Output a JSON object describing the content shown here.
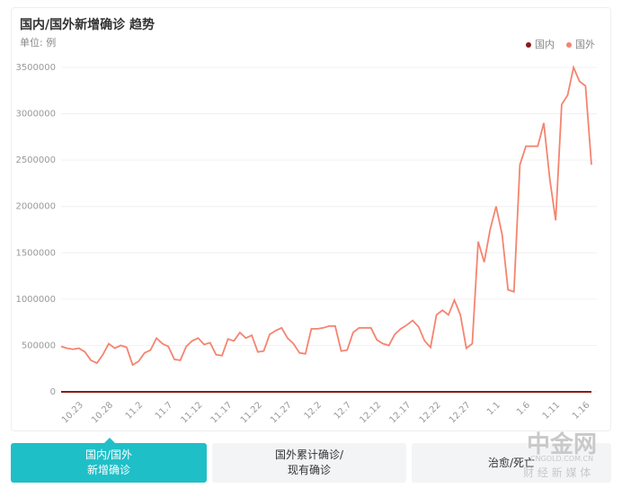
{
  "chart_data": {
    "type": "line",
    "title": "国内/国外新增确诊 趋势",
    "unit_label": "单位: 例",
    "categories": [
      null,
      null,
      null,
      "10.23",
      null,
      null,
      null,
      null,
      "10.28",
      null,
      null,
      null,
      null,
      "11.2",
      null,
      null,
      null,
      null,
      "11.7",
      null,
      null,
      null,
      null,
      "11.12",
      null,
      null,
      null,
      null,
      "11.17",
      null,
      null,
      null,
      null,
      "11.22",
      null,
      null,
      null,
      null,
      "11.27",
      null,
      null,
      null,
      null,
      "12.2",
      null,
      null,
      null,
      null,
      "12.7",
      null,
      null,
      null,
      null,
      "12.12",
      null,
      null,
      null,
      null,
      "12.17",
      null,
      null,
      null,
      null,
      "12.22",
      null,
      null,
      null,
      null,
      "12.27",
      null,
      null,
      null,
      null,
      "1.1",
      null,
      null,
      null,
      null,
      "1.6",
      null,
      null,
      null,
      null,
      "1.11",
      null,
      null,
      null,
      null,
      "1.16",
      null
    ],
    "series": [
      {
        "name": "国内",
        "color": "#8b1a1a",
        "values": [
          20,
          25,
          20,
          30,
          25,
          20,
          20,
          30,
          25,
          20,
          20,
          25,
          30,
          20,
          20,
          25,
          20,
          30,
          25,
          20,
          20,
          25,
          30,
          20,
          20,
          25,
          20,
          30,
          25,
          20,
          20,
          25,
          30,
          20,
          20,
          25,
          20,
          30,
          25,
          20,
          20,
          25,
          30,
          20,
          20,
          25,
          20,
          30,
          25,
          20,
          20,
          25,
          30,
          20,
          20,
          25,
          20,
          30,
          25,
          20,
          20,
          25,
          30,
          20,
          20,
          25,
          20,
          30,
          25,
          20,
          40,
          50,
          60,
          70,
          80,
          90,
          100,
          110,
          120,
          130,
          140,
          150,
          160,
          150,
          140,
          130,
          120,
          110,
          100,
          90
        ]
      },
      {
        "name": "国外",
        "color": "#f5846f",
        "values": [
          490000,
          470000,
          460000,
          470000,
          430000,
          340000,
          310000,
          400000,
          520000,
          470000,
          500000,
          480000,
          290000,
          330000,
          420000,
          450000,
          580000,
          520000,
          490000,
          350000,
          340000,
          490000,
          550000,
          580000,
          510000,
          530000,
          400000,
          390000,
          570000,
          550000,
          640000,
          580000,
          610000,
          430000,
          440000,
          620000,
          660000,
          690000,
          580000,
          520000,
          420000,
          410000,
          680000,
          680000,
          690000,
          710000,
          710000,
          440000,
          450000,
          640000,
          690000,
          690000,
          690000,
          560000,
          520000,
          500000,
          620000,
          680000,
          720000,
          770000,
          700000,
          550000,
          480000,
          830000,
          880000,
          830000,
          990000,
          830000,
          470000,
          520000,
          1620000,
          1400000,
          1750000,
          2000000,
          1700000,
          1100000,
          1080000,
          2450000,
          2650000,
          2650000,
          2650000,
          2900000,
          2300000,
          1850000,
          3100000,
          3200000,
          3500000,
          3350000,
          3300000,
          2450000
        ]
      }
    ],
    "ylim": [
      0,
      3500000
    ],
    "yticks": [
      0,
      500000,
      1000000,
      1500000,
      2000000,
      2500000,
      3000000,
      3500000
    ],
    "grid": true,
    "legend": "top-right"
  },
  "tabs": [
    {
      "lines": [
        "国内/国外",
        "新增确诊"
      ],
      "active": true
    },
    {
      "lines": [
        "国外累计确诊/",
        "现有确诊"
      ],
      "active": false
    },
    {
      "lines": [
        "治愈/死亡"
      ],
      "active": false
    }
  ],
  "watermark": {
    "brand": "中金网",
    "domain": "CNGOLD.COM.CN",
    "tagline": "财 经 新 媒 体"
  }
}
